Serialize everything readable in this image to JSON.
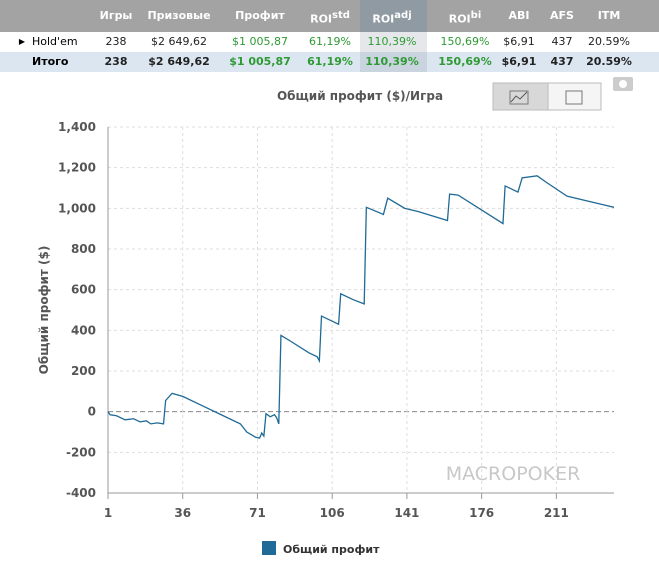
{
  "table": {
    "headers": [
      {
        "text": "Игры"
      },
      {
        "text": "Призовые"
      },
      {
        "text": "Профит"
      },
      {
        "text": "ROI",
        "sup": "std"
      },
      {
        "text": "ROI",
        "sup": "adj"
      },
      {
        "text": "ROI",
        "sup": "bi"
      },
      {
        "text": "ABI"
      },
      {
        "text": "AFS"
      },
      {
        "text": "ITM"
      }
    ],
    "rows": [
      {
        "label": "Hold'em",
        "cells": [
          "238",
          "$2 649,62",
          "$1 005,87",
          "61,19%",
          "110,39%",
          "150,69%",
          "$6,91",
          "437",
          "20.59%"
        ]
      },
      {
        "label": "Итого",
        "cells": [
          "238",
          "$2 649,62",
          "$1 005,87",
          "61,19%",
          "110,39%",
          "150,69%",
          "$6,91",
          "437",
          "20.59%"
        ]
      }
    ]
  },
  "chart_data": {
    "type": "line",
    "title": "Общий профит ($)/Игра",
    "y_label": "Общий профит ($)",
    "watermark": "MACROPOKER",
    "x": [
      1,
      2,
      5,
      9,
      13,
      16,
      19,
      21,
      24,
      27,
      28,
      31,
      36,
      45,
      55,
      63,
      66,
      70,
      72,
      73,
      74,
      75,
      77,
      79,
      80,
      81,
      82,
      86,
      95,
      99,
      100,
      101,
      106,
      109,
      110,
      116,
      121,
      122,
      130,
      132,
      140,
      146,
      160,
      161,
      165,
      186,
      187,
      193,
      195,
      202,
      206,
      216,
      228,
      234,
      238
    ],
    "series": [
      {
        "name": "Общий профит",
        "color": "#1f6a96",
        "values": [
          0,
          -15,
          -20,
          -40,
          -35,
          -50,
          -45,
          -60,
          -55,
          -60,
          55,
          90,
          75,
          30,
          -20,
          -60,
          -100,
          -125,
          -130,
          -105,
          -120,
          -10,
          -25,
          -15,
          -30,
          -60,
          375,
          350,
          290,
          270,
          250,
          470,
          445,
          430,
          580,
          550,
          530,
          1005,
          970,
          1050,
          1000,
          985,
          940,
          1070,
          1065,
          925,
          1110,
          1080,
          1150,
          1160,
          1130,
          1060,
          1030,
          1015,
          1005
        ]
      }
    ],
    "xlim": [
      1,
      238
    ],
    "ylim": [
      -400,
      1400
    ],
    "xticks": [
      1,
      36,
      71,
      106,
      141,
      176,
      211
    ],
    "yticks": [
      {
        "value": 1400,
        "label": "1,400"
      },
      {
        "value": 1200,
        "label": "1,200"
      },
      {
        "value": 1000,
        "label": "1,000"
      },
      800,
      600,
      400,
      200,
      0,
      -200,
      -400
    ],
    "grid": true
  }
}
